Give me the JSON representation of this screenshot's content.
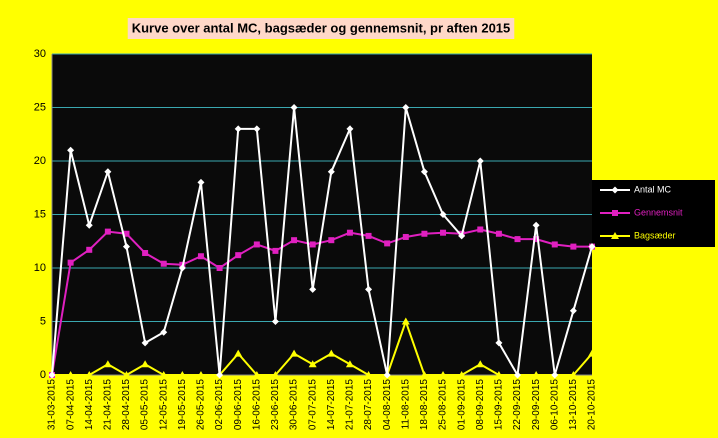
{
  "chart_data": {
    "type": "line",
    "title": "Kurve over antal MC, bagsæder og gennemsnit, pr aften 2015",
    "categories": [
      "31-03-2015",
      "07-04-2015",
      "14-04-2015",
      "21-04-2015",
      "28-04-2015",
      "05-05-2015",
      "12-05-2015",
      "19-05-2015",
      "26-05-2015",
      "02-06-2015",
      "09-06-2015",
      "16-06-2015",
      "23-06-2015",
      "30-06-2015",
      "07-07-2015",
      "14-07-2015",
      "21-07-2015",
      "28-07-2015",
      "04-08-2015",
      "11-08-2015",
      "18-08-2015",
      "25-08-2015",
      "01-09-2015",
      "08-09-2015",
      "15-09-2015",
      "22-09-2015",
      "29-09-2015",
      "06-10-2015",
      "13-10-2015",
      "20-10-2015"
    ],
    "series": [
      {
        "name": "Antal MC",
        "color": "#ffffff",
        "marker": "diamond",
        "values": [
          0,
          21,
          14,
          19,
          12,
          3,
          4,
          10,
          18,
          0,
          23,
          23,
          5,
          25,
          8,
          19,
          23,
          8,
          0,
          25,
          19,
          15,
          13,
          20,
          3,
          0,
          14,
          0,
          6,
          12
        ]
      },
      {
        "name": "Gennemsnit",
        "color": "#e020c0",
        "marker": "square",
        "values": [
          0,
          10.5,
          11.7,
          13.4,
          13.2,
          11.4,
          10.4,
          10.3,
          11.1,
          10.0,
          11.2,
          12.2,
          11.6,
          12.6,
          12.2,
          12.6,
          13.3,
          13.0,
          12.3,
          12.9,
          13.2,
          13.3,
          13.2,
          13.6,
          13.2,
          12.7,
          12.7,
          12.2,
          12.0,
          12.0
        ]
      },
      {
        "name": "Bagsæder",
        "color": "#ffff00",
        "marker": "triangle",
        "values": [
          0,
          0,
          0,
          1,
          0,
          1,
          0,
          0,
          0,
          0,
          2,
          0,
          0,
          2,
          1,
          2,
          1,
          0,
          0,
          5,
          0,
          0,
          0,
          1,
          0,
          0,
          0,
          0,
          0,
          2
        ]
      }
    ],
    "ylim": [
      0,
      30
    ],
    "yticks": [
      0,
      5,
      10,
      15,
      20,
      25,
      30
    ],
    "grid": true,
    "legend": "right"
  }
}
